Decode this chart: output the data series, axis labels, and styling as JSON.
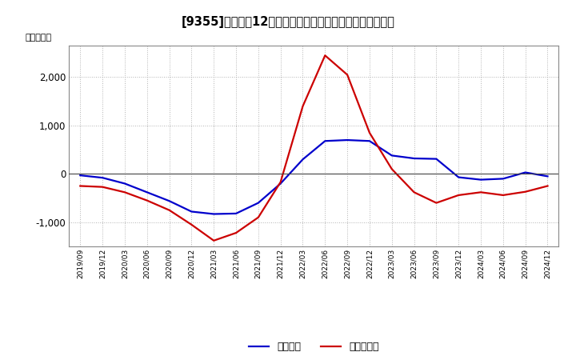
{
  "title": "[9355]　利益の12か月移動合計の対前年同期増減額の推移",
  "ylabel": "（百万円）",
  "background_color": "#ffffff",
  "plot_bg_color": "#ffffff",
  "grid_color": "#aaaaaa",
  "ylim": [
    -1500,
    2650
  ],
  "yticks": [
    -1000,
    0,
    1000,
    2000
  ],
  "x_labels": [
    "2019/09",
    "2019/12",
    "2020/03",
    "2020/06",
    "2020/09",
    "2020/12",
    "2021/03",
    "2021/06",
    "2021/09",
    "2021/12",
    "2022/03",
    "2022/06",
    "2022/09",
    "2022/12",
    "2023/03",
    "2023/06",
    "2023/09",
    "2023/12",
    "2024/03",
    "2024/06",
    "2024/09",
    "2024/12"
  ],
  "blue_values": [
    -30,
    -80,
    -200,
    -380,
    -560,
    -780,
    -830,
    -820,
    -600,
    -200,
    300,
    680,
    700,
    680,
    380,
    320,
    310,
    -70,
    -120,
    -100,
    30,
    -50
  ],
  "red_values": [
    -250,
    -270,
    -380,
    -550,
    -750,
    -1050,
    -1380,
    -1220,
    -900,
    -170,
    1400,
    2450,
    2050,
    850,
    100,
    -380,
    -600,
    -440,
    -380,
    -440,
    -370,
    -250
  ],
  "blue_label": "経常利益",
  "red_label": "当期純利益",
  "blue_color": "#0000cc",
  "red_color": "#cc0000",
  "line_width": 1.6
}
